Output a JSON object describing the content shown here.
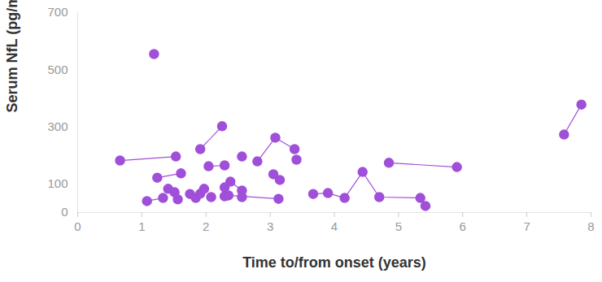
{
  "chart_data": {
    "type": "scatter",
    "x_label": "Time to/from onset (years)",
    "y_label": "Serum NfL (pg/mL)",
    "color": "#a04fd9",
    "marker": "circle",
    "line_style": "solid",
    "grid": false,
    "xlim": [
      0,
      8
    ],
    "xticks": [
      0,
      1,
      2,
      3,
      4,
      5,
      6,
      7,
      8
    ],
    "ylim": [
      0,
      700
    ],
    "yticks": [
      0,
      100,
      300,
      500,
      700
    ],
    "series": [
      {
        "x": [
          0.66,
          1.53
        ],
        "values": [
          182,
          196
        ]
      },
      {
        "x": [
          1.19
        ],
        "values": [
          555
        ]
      },
      {
        "x": [
          1.24,
          1.61
        ],
        "values": [
          122,
          137
        ]
      },
      {
        "x": [
          1.91,
          2.25
        ],
        "values": [
          222,
          302
        ]
      },
      {
        "x": [
          2.04,
          2.29
        ],
        "values": [
          162,
          165
        ]
      },
      {
        "x": [
          2.56
        ],
        "values": [
          196
        ]
      },
      {
        "x": [
          2.8,
          3.08,
          3.38
        ],
        "values": [
          179,
          262,
          222
        ]
      },
      {
        "x": [
          3.05,
          3.15
        ],
        "values": [
          134,
          114
        ]
      },
      {
        "x": [
          3.41
        ],
        "values": [
          185
        ]
      },
      {
        "x": [
          1.41,
          1.51
        ],
        "values": [
          83,
          71
        ]
      },
      {
        "x": [
          1.75,
          1.84,
          1.91,
          1.97
        ],
        "values": [
          65,
          51,
          66,
          83
        ]
      },
      {
        "x": [
          2.29,
          2.38,
          2.56
        ],
        "values": [
          88,
          108,
          77
        ]
      },
      {
        "x": [
          2.29,
          2.35,
          3.13
        ],
        "values": [
          57,
          60,
          48
        ]
      },
      {
        "x": [
          2.56
        ],
        "values": [
          54
        ]
      },
      {
        "x": [
          1.08,
          1.33
        ],
        "values": [
          40,
          51
        ]
      },
      {
        "x": [
          1.56
        ],
        "values": [
          46
        ]
      },
      {
        "x": [
          2.08
        ],
        "values": [
          54
        ]
      },
      {
        "x": [
          3.67,
          3.9,
          4.16,
          4.44,
          4.7,
          5.34,
          5.42
        ],
        "values": [
          65,
          68,
          51,
          142,
          54,
          51,
          23
        ]
      },
      {
        "x": [
          4.85,
          5.91
        ],
        "values": [
          174,
          159
        ]
      },
      {
        "x": [
          7.58,
          7.85
        ],
        "values": [
          273,
          378
        ]
      }
    ]
  }
}
